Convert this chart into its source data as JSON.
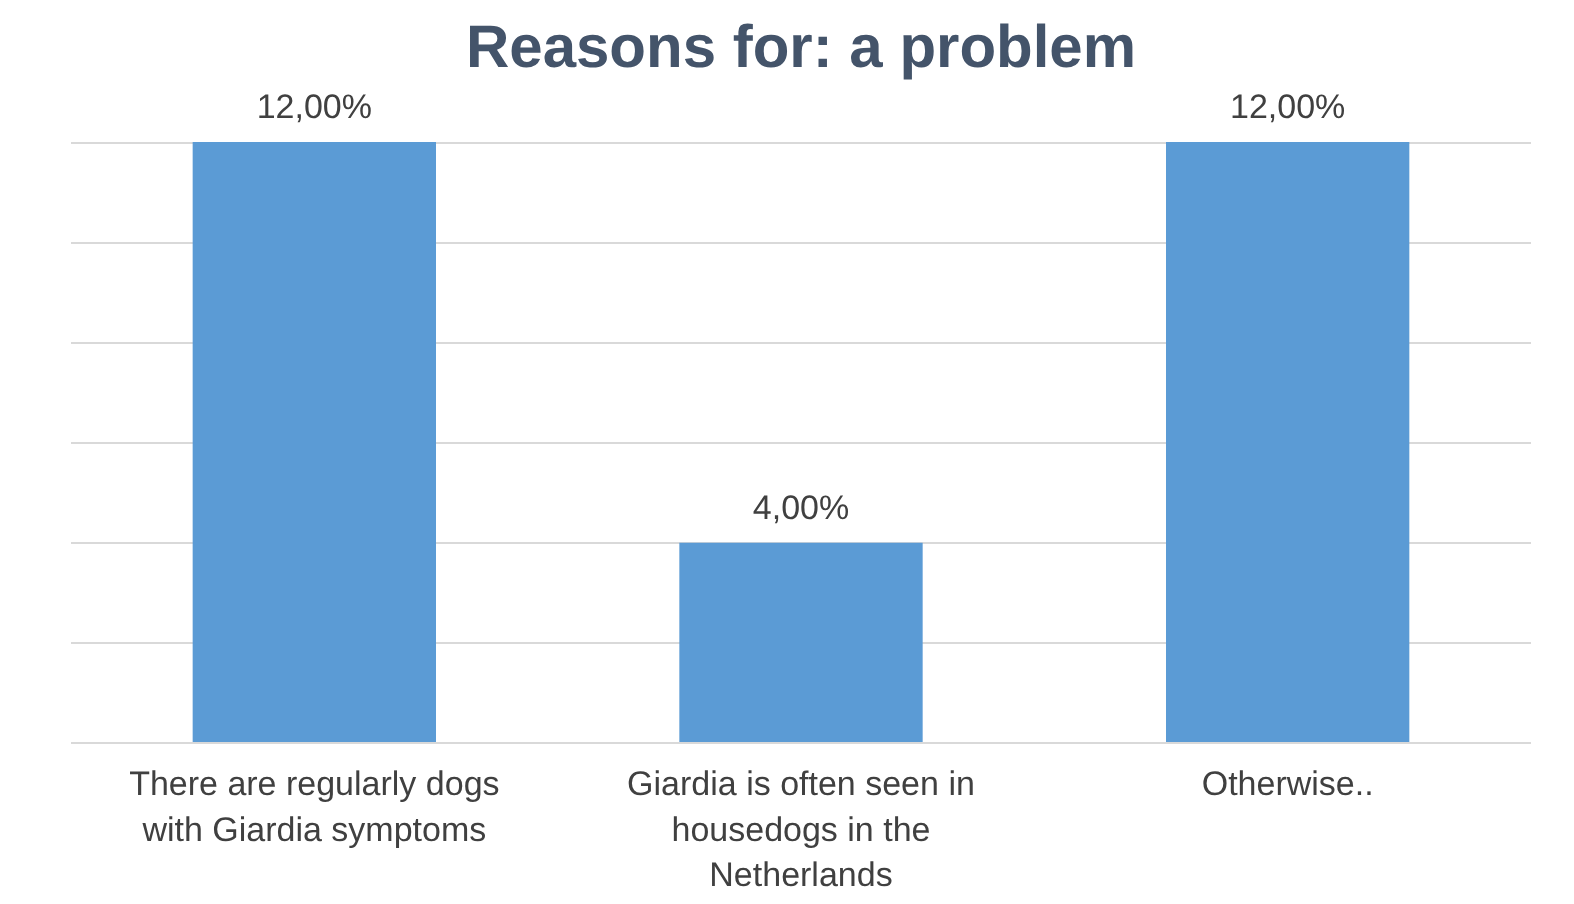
{
  "chart_data": {
    "type": "bar",
    "title": "Reasons for: a problem",
    "categories": [
      "There are regularly dogs with Giardia symptoms",
      "Giardia is often seen in housedogs in the Netherlands",
      "Otherwise.."
    ],
    "values": [
      12,
      4,
      12
    ],
    "color": "#5b9bd5",
    "value_labels": [
      "12,00%",
      "4,00%",
      "12,00%"
    ],
    "yticks": [
      {
        "value": 0,
        "label": null
      },
      {
        "value": 2,
        "label": null
      },
      {
        "value": 4,
        "label": null
      },
      {
        "value": 6,
        "label": null
      },
      {
        "value": 8,
        "label": null
      },
      {
        "value": 10,
        "label": null
      },
      {
        "value": 12,
        "label": null
      }
    ],
    "tick_labels": "x",
    "grid": "y"
  }
}
